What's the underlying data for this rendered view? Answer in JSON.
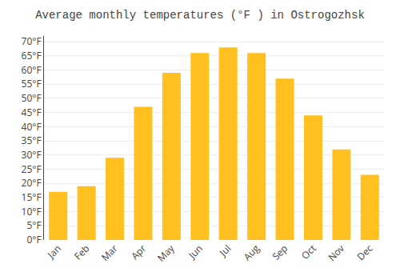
{
  "chart_data": {
    "type": "bar",
    "title": "Average monthly temperatures (°F ) in Ostrogozhsk",
    "categories": [
      "Jan",
      "Feb",
      "Mar",
      "Apr",
      "May",
      "Jun",
      "Jul",
      "Aug",
      "Sep",
      "Oct",
      "Nov",
      "Dec"
    ],
    "values": [
      17,
      19,
      29,
      47,
      59,
      66,
      68,
      66,
      57,
      44,
      32,
      23
    ],
    "color": "#FFC020",
    "ylim": [
      0,
      72
    ],
    "yticks": [
      {
        "value": 0,
        "label": "0°F"
      },
      {
        "value": 5,
        "label": "5°F"
      },
      {
        "value": 10,
        "label": "10°F"
      },
      {
        "value": 15,
        "label": "15°F"
      },
      {
        "value": 20,
        "label": "20°F"
      },
      {
        "value": 25,
        "label": "25°F"
      },
      {
        "value": 30,
        "label": "30°F"
      },
      {
        "value": 35,
        "label": "35°F"
      },
      {
        "value": 40,
        "label": "40°F"
      },
      {
        "value": 45,
        "label": "45°F"
      },
      {
        "value": 50,
        "label": "50°F"
      },
      {
        "value": 55,
        "label": "55°F"
      },
      {
        "value": 60,
        "label": "60°F"
      },
      {
        "value": 65,
        "label": "65°F"
      },
      {
        "value": 70,
        "label": "70°F"
      }
    ],
    "grid": true
  }
}
